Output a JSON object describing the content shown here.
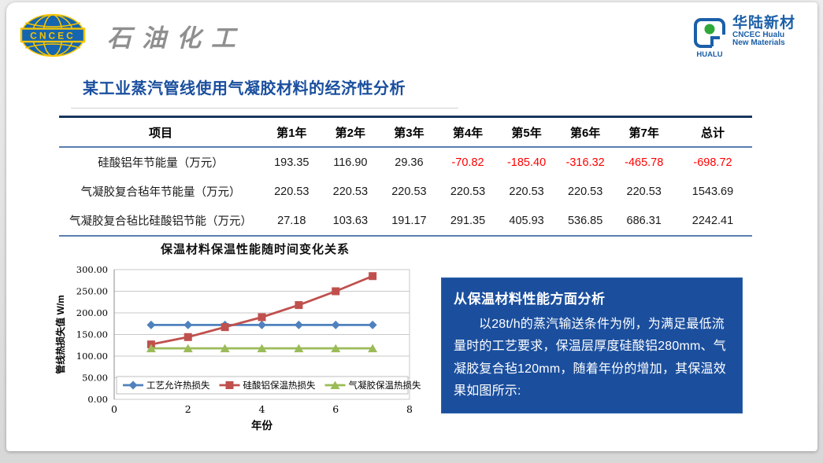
{
  "header": {
    "cncec_logo_text": "CNCEC",
    "brand": "石油化工",
    "hualu": {
      "name_cn": "华陆新材",
      "line1": "CNCEC Hualu",
      "line2": "New Materials",
      "tag": "HUALU"
    }
  },
  "title": "某工业蒸汽管线使用气凝胶材料的经济性分析",
  "table": {
    "headers": [
      "项目",
      "第1年",
      "第2年",
      "第3年",
      "第4年",
      "第5年",
      "第6年",
      "第7年",
      "总计"
    ],
    "rows": [
      {
        "label": "硅酸铝年节能量（万元）",
        "values": [
          "193.35",
          "116.90",
          "29.36",
          "-70.82",
          "-185.40",
          "-316.32",
          "-465.78",
          "-698.72"
        ]
      },
      {
        "label": "气凝胶复合毡年节能量（万元）",
        "values": [
          "220.53",
          "220.53",
          "220.53",
          "220.53",
          "220.53",
          "220.53",
          "220.53",
          "1543.69"
        ]
      },
      {
        "label": "气凝胶复合毡比硅酸铝节能（万元）",
        "values": [
          "27.18",
          "103.63",
          "191.17",
          "291.35",
          "405.93",
          "536.85",
          "686.31",
          "2242.41"
        ]
      }
    ],
    "negative_color": "#ff0000"
  },
  "chart_data": {
    "type": "line",
    "title": "保温材料保温性能随时间变化关系",
    "xlabel": "年份",
    "ylabel": "管线热损失值 W/m",
    "x": [
      1,
      2,
      3,
      4,
      5,
      6,
      7
    ],
    "xlim": [
      0,
      8
    ],
    "xticks": [
      0,
      2,
      4,
      6,
      8
    ],
    "ylim": [
      0,
      300
    ],
    "ytick_step": 50,
    "grid": true,
    "legend_position": "bottom-inside",
    "series": [
      {
        "name": "工艺允许热损失",
        "color": "#4F81BD",
        "marker": "diamond",
        "values": [
          172,
          172,
          172,
          172,
          172,
          172,
          172
        ]
      },
      {
        "name": "硅酸铝保温热损失",
        "color": "#C0504D",
        "marker": "square",
        "values": [
          127,
          144,
          167,
          190,
          218,
          250,
          285
        ]
      },
      {
        "name": "气凝胶保温热损失",
        "color": "#9BBB59",
        "marker": "triangle",
        "values": [
          118,
          118,
          118,
          118,
          118,
          118,
          118
        ]
      }
    ]
  },
  "analysis_box": {
    "heading": "从保温材料性能方面分析",
    "body": "以28t/h的蒸汽输送条件为例，为满足最低流量时的工艺要求，保温层厚度硅酸铝280mm、气凝胶复合毡120mm，随着年份的增加，其保温效果如图所示:"
  },
  "colors": {
    "title_blue": "#1a4f9e",
    "analysis_bg": "#1b4f9e",
    "table_top_border": "#17365d",
    "table_rule": "#5a7db0",
    "grid_line": "#c9c9c9"
  }
}
